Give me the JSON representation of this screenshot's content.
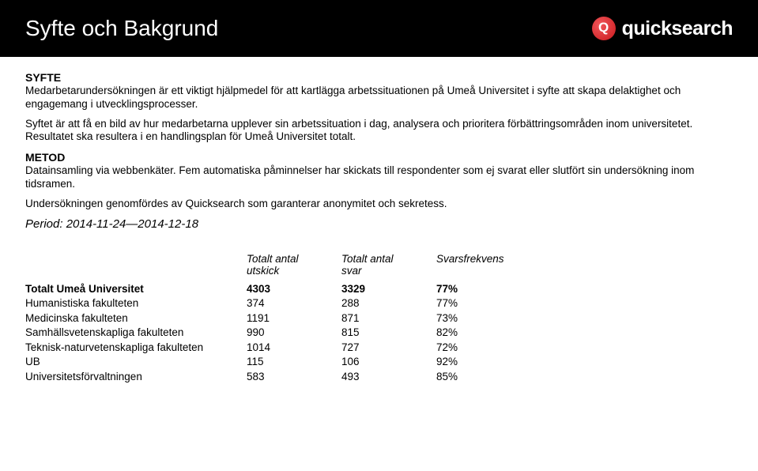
{
  "header": {
    "title": "Syfte och Bakgrund",
    "logo_text": "quicksearch"
  },
  "syfte": {
    "heading": "SYFTE",
    "p1": "Medarbetarundersökningen är ett viktigt hjälpmedel för att kartlägga arbetssituationen på Umeå Universitet i syfte att skapa delaktighet och engagemang i utvecklingsprocesser.",
    "p2": "Syftet är att få en bild av hur medarbetarna upplever sin arbetssituation i dag, analysera och prioritera förbättringsområden inom universitetet. Resultatet ska resultera i en handlingsplan för Umeå Universitet totalt."
  },
  "metod": {
    "heading": "METOD",
    "p1": "Datainsamling via webbenkäter. Fem automatiska påminnelser har skickats till respondenter som ej svarat eller slutfört sin undersökning inom tidsramen.",
    "p2": "Undersökningen genomfördes av Quicksearch som garanterar anonymitet och sekretess."
  },
  "period": "Period: 2014-11-24—2014-12-18",
  "table": {
    "headers": {
      "col2a": "Totalt antal",
      "col2b": "utskick",
      "col3a": "Totalt antal",
      "col3b": "svar",
      "col4": "Svarsfrekvens"
    },
    "rows": [
      {
        "label": "Totalt Umeå Universitet",
        "utskick": "4303",
        "svar": "3329",
        "freq": "77%",
        "bold": true
      },
      {
        "label": "Humanistiska fakulteten",
        "utskick": "374",
        "svar": "288",
        "freq": "77%",
        "bold": false
      },
      {
        "label": "Medicinska fakulteten",
        "utskick": "1191",
        "svar": "871",
        "freq": "73%",
        "bold": false
      },
      {
        "label": "Samhällsvetenskapliga fakulteten",
        "utskick": "990",
        "svar": "815",
        "freq": "82%",
        "bold": false
      },
      {
        "label": "Teknisk-naturvetenskapliga fakulteten",
        "utskick": "1014",
        "svar": "727",
        "freq": "72%",
        "bold": false
      },
      {
        "label": "UB",
        "utskick": "115",
        "svar": "106",
        "freq": "92%",
        "bold": false
      },
      {
        "label": "Universitetsförvaltningen",
        "utskick": "583",
        "svar": "493",
        "freq": "85%",
        "bold": false
      }
    ]
  }
}
